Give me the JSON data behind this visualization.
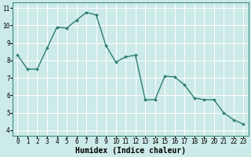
{
  "x": [
    0,
    1,
    2,
    3,
    4,
    5,
    6,
    7,
    8,
    9,
    10,
    11,
    12,
    13,
    14,
    15,
    16,
    17,
    18,
    19,
    20,
    21,
    22,
    23
  ],
  "y": [
    8.3,
    7.5,
    7.5,
    8.7,
    9.9,
    9.85,
    10.3,
    10.75,
    10.6,
    8.85,
    7.9,
    8.2,
    8.3,
    5.75,
    5.75,
    7.1,
    7.05,
    6.6,
    5.85,
    5.75,
    5.75,
    5.0,
    4.6,
    4.35
  ],
  "line_color": "#2d7d6e",
  "marker": "D",
  "marker_size": 1.8,
  "bg_color": "#cceae7",
  "grid_color": "#ffffff",
  "xlabel": "Humidex (Indice chaleur)",
  "ylim": [
    3.7,
    11.3
  ],
  "xlim": [
    -0.5,
    23.5
  ],
  "yticks": [
    4,
    5,
    6,
    7,
    8,
    9,
    10,
    11
  ],
  "xticks": [
    0,
    1,
    2,
    3,
    4,
    5,
    6,
    7,
    8,
    9,
    10,
    11,
    12,
    13,
    14,
    15,
    16,
    17,
    18,
    19,
    20,
    21,
    22,
    23
  ],
  "tick_fontsize": 5.5,
  "xlabel_fontsize": 7.0,
  "line_width": 1.0
}
